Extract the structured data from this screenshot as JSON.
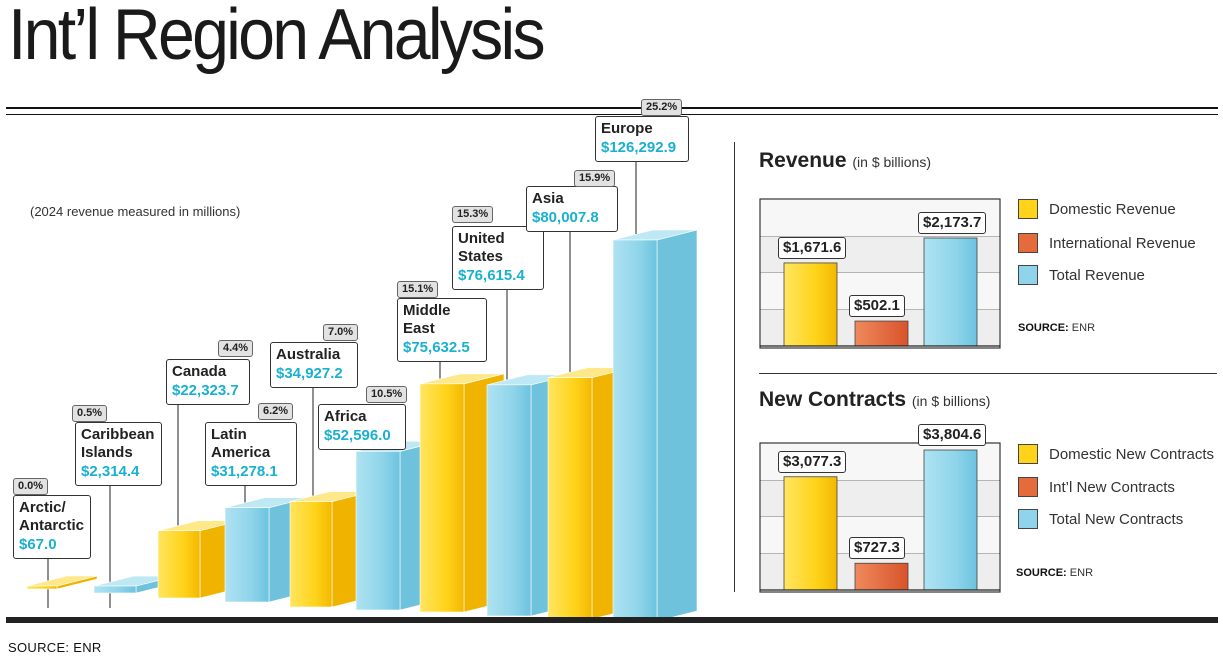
{
  "title": "Int’l Region Analysis",
  "subtitle": "(2024 revenue measured in millions)",
  "source_main": "SOURCE: ENR",
  "colors": {
    "yellow": "#ffd31a",
    "blue": "#8fd4ea",
    "orange": "#e56a3c",
    "value_text": "#1ab0d0"
  },
  "chart_data": [
    {
      "type": "bar",
      "title": "",
      "categories": [
        "Arctic/\nAntarctic",
        "Caribbean\nIslands",
        "Canada",
        "Latin\nAmerica",
        "Australia",
        "Africa",
        "Middle\nEast",
        "United\nStates",
        "Asia",
        "Europe"
      ],
      "values": [
        67.0,
        2314.4,
        22323.7,
        31278.1,
        34927.2,
        52596.0,
        75632.5,
        76615.4,
        80007.8,
        126292.9
      ],
      "value_labels": [
        "$67.0",
        "$2,314.4",
        "$22,323.7",
        "$31,278.1",
        "$34,927.2",
        "$52,596.0",
        "$75,632.5",
        "$76,615.4",
        "$80,007.8",
        "$126,292.9"
      ],
      "share_labels": [
        "0.0%",
        "0.5%",
        "4.4%",
        "6.2%",
        "7.0%",
        "10.5%",
        "15.1%",
        "15.3%",
        "15.9%",
        "25.2%"
      ],
      "bar_colors": [
        "yellow",
        "blue",
        "yellow",
        "blue",
        "yellow",
        "blue",
        "yellow",
        "blue",
        "yellow",
        "blue"
      ]
    },
    {
      "type": "bar",
      "title": "Revenue",
      "unit": "(in $ billions)",
      "categories": [
        "Domestic Revenue",
        "International Revenue",
        "Total Revenue"
      ],
      "values": [
        1671.6,
        502.1,
        2173.7
      ],
      "value_labels": [
        "$1,671.6",
        "$502.1",
        "$2,173.7"
      ],
      "source": "ENR",
      "source_label": "SOURCE:"
    },
    {
      "type": "bar",
      "title": "New Contracts",
      "unit": "(in $ billions)",
      "categories": [
        "Domestic New Contracts",
        "Int’l New Contracts",
        "Total New Contracts"
      ],
      "values": [
        3077.3,
        727.3,
        3804.6
      ],
      "value_labels": [
        "$3,077.3",
        "$727.3",
        "$3,804.6"
      ],
      "source": "ENR",
      "source_label": "SOURCE:"
    }
  ]
}
